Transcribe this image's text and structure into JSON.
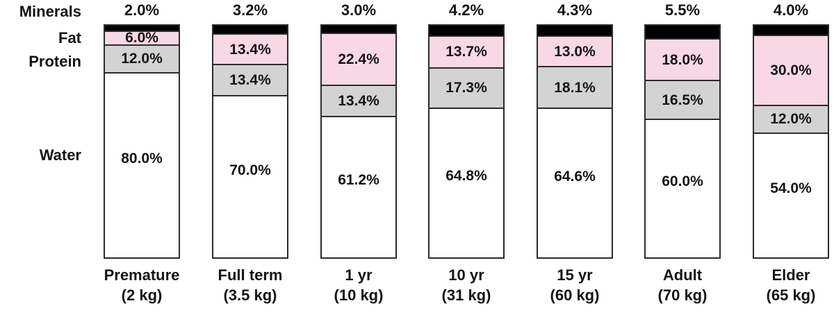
{
  "chart_data": {
    "type": "bar",
    "subtype": "percent-stacked-column",
    "title": "",
    "xlabel": "",
    "ylabel": "",
    "ylim": [
      0,
      100
    ],
    "grid": false,
    "value_suffix": "%",
    "legend_position": "row-labels-left",
    "categories": [
      "Premature (2 kg)",
      "Full term (3.5 kg)",
      "1 yr (10 kg)",
      "10 yr (31 kg)",
      "15 yr (60 kg)",
      "Adult (70 kg)",
      "Elder (65 kg)"
    ],
    "category_lines": [
      [
        "Premature",
        "(2 kg)"
      ],
      [
        "Full term",
        "(3.5 kg)"
      ],
      [
        "1 yr",
        "(10 kg)"
      ],
      [
        "10 yr",
        "(31 kg)"
      ],
      [
        "15 yr",
        "(60 kg)"
      ],
      [
        "Adult",
        "(70 kg)"
      ],
      [
        "Elder",
        "(65 kg)"
      ]
    ],
    "series": [
      {
        "name": "Minerals",
        "color": "#000000",
        "label_position": "above-bar",
        "values": [
          2.0,
          3.2,
          3.0,
          4.2,
          4.3,
          5.5,
          4.0
        ]
      },
      {
        "name": "Fat",
        "color": "#f9d8e6",
        "label_position": "inside",
        "values": [
          6.0,
          13.4,
          22.4,
          13.7,
          13.0,
          18.0,
          30.0
        ]
      },
      {
        "name": "Protein",
        "color": "#d3d3d3",
        "label_position": "inside",
        "values": [
          12.0,
          13.4,
          13.4,
          17.3,
          18.1,
          16.5,
          12.0
        ]
      },
      {
        "name": "Water",
        "color": "#ffffff",
        "label_position": "inside",
        "values": [
          80.0,
          70.0,
          61.2,
          64.8,
          64.6,
          60.0,
          54.0
        ]
      }
    ]
  },
  "row_labels": {
    "minerals": "Minerals",
    "fat": "Fat",
    "protein": "Protein",
    "water": "Water"
  },
  "colors": {
    "minerals_fill": "#000000",
    "fat_fill": "#f9d8e6",
    "protein_fill": "#d3d3d3",
    "water_fill": "#ffffff",
    "border": "#2b2b2b",
    "text": "#141414",
    "background": "#ffffff"
  }
}
